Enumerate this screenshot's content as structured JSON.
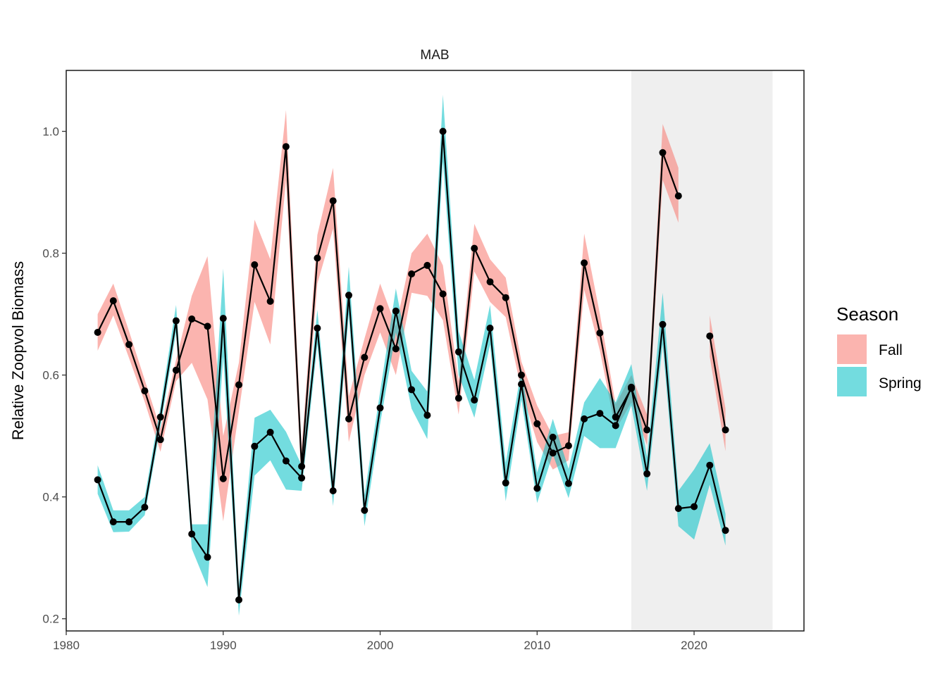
{
  "chart_data": {
    "type": "line",
    "title": "MAB",
    "xlabel": "",
    "ylabel": "Relative Zoopvol Biomass",
    "xlim": [
      1980,
      2027
    ],
    "ylim": [
      0.18,
      1.1
    ],
    "xticks": [
      1980,
      1990,
      2000,
      2010,
      2020
    ],
    "yticks": [
      0.2,
      0.4,
      0.6,
      0.8,
      1.0
    ],
    "ytick_labels": [
      "0.2",
      "0.4",
      "0.6",
      "0.8",
      "1.0"
    ],
    "highlight_range": [
      2016,
      2025
    ],
    "grid": false,
    "legend": {
      "title": "Season",
      "position": "right",
      "entries": [
        {
          "label": "Fall",
          "color": "#F8766D"
        },
        {
          "label": "Spring",
          "color": "#00BFC4"
        }
      ]
    },
    "series": [
      {
        "name": "Fall",
        "color": "#F8766D",
        "x": [
          1982,
          1983,
          1984,
          1985,
          1986,
          1987,
          1988,
          1989,
          1990,
          1991,
          1992,
          1993,
          1994,
          1995,
          1996,
          1997,
          1998,
          1999,
          2000,
          2001,
          2002,
          2003,
          2004,
          2005,
          2006,
          2007,
          2008,
          2009,
          2010,
          2011,
          2012,
          2013,
          2014,
          2015,
          2016,
          2017,
          2018,
          2019,
          null,
          2021,
          2022
        ],
        "y": [
          0.67,
          0.722,
          0.65,
          0.574,
          0.494,
          0.608,
          0.692,
          0.68,
          0.43,
          0.584,
          0.781,
          0.721,
          0.975,
          0.45,
          0.792,
          0.886,
          0.528,
          0.629,
          0.709,
          0.643,
          0.766,
          0.78,
          0.733,
          0.562,
          0.808,
          0.753,
          0.727,
          0.6,
          0.52,
          0.472,
          0.484,
          0.784,
          0.669,
          0.531,
          0.578,
          0.51,
          0.965,
          0.894,
          null,
          0.664,
          0.51
        ],
        "lower": [
          0.64,
          0.698,
          0.628,
          0.556,
          0.474,
          0.59,
          0.62,
          0.56,
          0.36,
          0.54,
          0.72,
          0.65,
          0.92,
          0.42,
          0.75,
          0.84,
          0.49,
          0.6,
          0.67,
          0.6,
          0.735,
          0.73,
          0.69,
          0.535,
          0.77,
          0.72,
          0.695,
          0.575,
          0.49,
          0.445,
          0.46,
          0.74,
          0.64,
          0.51,
          0.555,
          0.485,
          0.92,
          0.85,
          null,
          0.63,
          0.475
        ],
        "upper": [
          0.7,
          0.75,
          0.672,
          0.592,
          0.512,
          0.625,
          0.73,
          0.795,
          0.5,
          0.62,
          0.855,
          0.79,
          1.035,
          0.48,
          0.83,
          0.94,
          0.565,
          0.66,
          0.75,
          0.68,
          0.8,
          0.832,
          0.78,
          0.59,
          0.848,
          0.79,
          0.76,
          0.622,
          0.55,
          0.5,
          0.506,
          0.832,
          0.7,
          0.552,
          0.6,
          0.535,
          1.012,
          0.94,
          null,
          0.698,
          0.545
        ]
      },
      {
        "name": "Spring",
        "color": "#00BFC4",
        "x": [
          1982,
          1983,
          1984,
          1985,
          1986,
          1987,
          1988,
          1989,
          1990,
          1991,
          1992,
          1993,
          1994,
          1995,
          1996,
          1997,
          1998,
          1999,
          2000,
          2001,
          2002,
          2003,
          2004,
          2005,
          2006,
          2007,
          2008,
          2009,
          2010,
          2011,
          2012,
          2013,
          2014,
          2015,
          2016,
          2017,
          2018,
          2019,
          2020,
          2021,
          2022
        ],
        "y": [
          0.428,
          0.359,
          0.359,
          0.383,
          0.531,
          0.689,
          0.339,
          0.301,
          0.693,
          0.231,
          0.483,
          0.506,
          0.459,
          0.431,
          0.677,
          0.41,
          0.731,
          0.378,
          0.546,
          0.705,
          0.576,
          0.534,
          1.0,
          0.638,
          0.559,
          0.677,
          0.423,
          0.585,
          0.414,
          0.498,
          0.422,
          0.528,
          0.537,
          0.517,
          0.58,
          0.438,
          0.683,
          0.381,
          0.384,
          0.452,
          0.345
        ],
        "lower": [
          0.405,
          0.342,
          0.343,
          0.37,
          0.515,
          0.67,
          0.315,
          0.252,
          0.63,
          0.205,
          0.435,
          0.46,
          0.412,
          0.41,
          0.65,
          0.385,
          0.7,
          0.352,
          0.52,
          0.67,
          0.545,
          0.495,
          0.95,
          0.6,
          0.53,
          0.65,
          0.393,
          0.56,
          0.39,
          0.47,
          0.398,
          0.5,
          0.48,
          0.48,
          0.55,
          0.41,
          0.65,
          0.352,
          0.33,
          0.42,
          0.32
        ],
        "upper": [
          0.452,
          0.378,
          0.378,
          0.4,
          0.548,
          0.715,
          0.355,
          0.355,
          0.775,
          0.255,
          0.53,
          0.543,
          0.507,
          0.452,
          0.707,
          0.432,
          0.778,
          0.403,
          0.573,
          0.742,
          0.607,
          0.573,
          1.06,
          0.672,
          0.592,
          0.715,
          0.456,
          0.61,
          0.44,
          0.528,
          0.446,
          0.555,
          0.595,
          0.555,
          0.618,
          0.465,
          0.735,
          0.41,
          0.445,
          0.488,
          0.372
        ]
      }
    ]
  }
}
